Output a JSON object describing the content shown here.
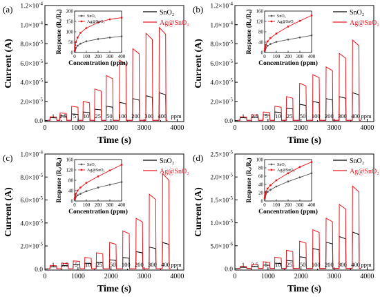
{
  "figure": {
    "ppm_unit": "ppm",
    "concentration_labels": [
      "1",
      "2.5",
      "5",
      "10",
      "25",
      "50",
      "100",
      "200",
      "300",
      "400"
    ],
    "legend": {
      "series_a": "SnO₂",
      "series_b": "Ag@SnO₂"
    },
    "colors": {
      "SnO2": "#000000",
      "Ag@SnO2": "#e8141b",
      "inset_SnO2": "#555555"
    },
    "exponent_text": {
      "e4": "-4",
      "e5": "-5",
      "e6": "-6"
    }
  },
  "chart_data": [
    {
      "type": "line",
      "panel_label": "(a)",
      "xlabel": "Time (s)",
      "ylabel": "Current (A)",
      "xlim": [
        0,
        4200
      ],
      "ylim": [
        -1e-06,
        0.00012
      ],
      "y_exp": -5,
      "yticks": [
        {
          "v": 0,
          "m": "0.0",
          "e": ""
        },
        {
          "v": 2e-05,
          "m": "2.0×10",
          "e": "-5"
        },
        {
          "v": 4e-05,
          "m": "4.0×10",
          "e": "-5"
        },
        {
          "v": 6e-05,
          "m": "6.0×10",
          "e": "-5"
        },
        {
          "v": 8e-05,
          "m": "8.0×10",
          "e": "-5"
        },
        {
          "v": 0.0001,
          "m": "1.0×10",
          "e": "-4"
        },
        {
          "v": 0.00012,
          "m": "1.2×10",
          "e": "-4"
        }
      ],
      "xticks": [
        0,
        1000,
        2000,
        3000,
        4000
      ],
      "baseline": 2e-07,
      "pulse_starts": [
        150,
        450,
        800,
        1150,
        1500,
        1850,
        2250,
        2650,
        3050,
        3450
      ],
      "pulse_width": 200,
      "series": [
        {
          "name": "SnO₂",
          "peaks": [
            3e-06,
            5e-06,
            7e-06,
            9e-06,
            1.2e-05,
            1.5e-05,
            1.9e-05,
            2.3e-05,
            2.6e-05,
            2.9e-05
          ]
        },
        {
          "name": "Ag@SnO₂",
          "peaks": [
            4e-06,
            8e-06,
            1.5e-05,
            2e-05,
            3.3e-05,
            4.7e-05,
            6.3e-05,
            7.5e-05,
            9.1e-05,
            9.7e-05
          ]
        }
      ],
      "inset": {
        "xlabel": "Concentration (ppm)",
        "ylabel": "Response (Rₐ/R₉)",
        "xlim": [
          0,
          400
        ],
        "ylim": [
          0,
          200
        ],
        "xticks": [
          0,
          100,
          200,
          300,
          400
        ],
        "yticks": [
          0,
          50,
          100,
          150,
          200
        ],
        "x": [
          1,
          2.5,
          5,
          10,
          25,
          50,
          100,
          200,
          300,
          400
        ],
        "series": [
          {
            "name": "SnO₂",
            "values": [
              5,
              10,
              15,
              22,
              33,
              43,
              54,
              65,
              72,
              78
            ]
          },
          {
            "name": "Ag@SnO₂",
            "values": [
              10,
              22,
              35,
              50,
              72,
              95,
              118,
              145,
              160,
              168
            ]
          }
        ]
      }
    },
    {
      "type": "line",
      "panel_label": "(b)",
      "xlabel": "Time (s)",
      "ylabel": "Current (A)",
      "xlim": [
        0,
        4200
      ],
      "ylim": [
        -1e-06,
        0.00012
      ],
      "yticks": [
        {
          "v": 0,
          "m": "0.0",
          "e": ""
        },
        {
          "v": 2e-05,
          "m": "2.0×10",
          "e": "-5"
        },
        {
          "v": 4e-05,
          "m": "4.0×10",
          "e": "-5"
        },
        {
          "v": 6e-05,
          "m": "6.0×10",
          "e": "-5"
        },
        {
          "v": 8e-05,
          "m": "8.0×10",
          "e": "-5"
        },
        {
          "v": 0.0001,
          "m": "1.0×10",
          "e": "-4"
        },
        {
          "v": 0.00012,
          "m": "1.2×10",
          "e": "-4"
        }
      ],
      "xticks": [
        0,
        1000,
        2000,
        3000,
        4000
      ],
      "baseline": 2e-07,
      "pulse_starts": [
        150,
        500,
        850,
        1200,
        1550,
        1950,
        2350,
        2750,
        3150,
        3550
      ],
      "pulse_width": 200,
      "series": [
        {
          "name": "SnO₂",
          "peaks": [
            3e-06,
            4e-06,
            6e-06,
            9e-06,
            1.3e-05,
            1.7e-05,
            2e-05,
            2.3e-05,
            2.5e-05,
            2.9e-05
          ]
        },
        {
          "name": "Ag@SnO₂",
          "peaks": [
            4e-06,
            6e-06,
            9e-06,
            1.5e-05,
            2.5e-05,
            3.9e-05,
            4.8e-05,
            5.6e-05,
            7e-05,
            8.4e-05
          ]
        }
      ],
      "inset": {
        "xlabel": "Concentration (ppm)",
        "ylabel": "Response (Rₐ/R₉)",
        "xlim": [
          0,
          400
        ],
        "ylim": [
          0,
          160
        ],
        "xticks": [
          0,
          100,
          200,
          300,
          400
        ],
        "yticks": [
          0,
          40,
          80,
          120,
          160
        ],
        "x": [
          1,
          2.5,
          5,
          10,
          25,
          50,
          100,
          200,
          300,
          400
        ],
        "series": [
          {
            "name": "SnO₂",
            "values": [
              5,
              9,
              13,
              18,
              26,
              33,
              41,
              50,
              58,
              66
            ]
          },
          {
            "name": "Ag@SnO₂",
            "values": [
              8,
              15,
              22,
              30,
              43,
              56,
              73,
              100,
              122,
              143
            ]
          }
        ]
      }
    },
    {
      "type": "line",
      "panel_label": "(c)",
      "xlabel": "Time (s)",
      "ylabel": "Current (A)",
      "xlim": [
        0,
        4200
      ],
      "ylim": [
        -1e-06,
        0.0001
      ],
      "yticks": [
        {
          "v": 0,
          "m": "0.0",
          "e": ""
        },
        {
          "v": 2e-05,
          "m": "2.0×10",
          "e": "-5"
        },
        {
          "v": 4e-05,
          "m": "4.0×10",
          "e": "-5"
        },
        {
          "v": 6e-05,
          "m": "6.0×10",
          "e": "-5"
        },
        {
          "v": 8e-05,
          "m": "8.0×10",
          "e": "-5"
        },
        {
          "v": 0.0001,
          "m": "1.0×10",
          "e": "-4"
        }
      ],
      "xticks": [
        0,
        1000,
        2000,
        3000,
        4000
      ],
      "baseline": 2e-07,
      "pulse_starts": [
        150,
        500,
        850,
        1200,
        1550,
        1950,
        2350,
        2750,
        3150,
        3550
      ],
      "pulse_width": 200,
      "series": [
        {
          "name": "SnO₂",
          "peaks": [
            2e-06,
            3e-06,
            4e-06,
            5e-06,
            6e-06,
            8e-06,
            1e-05,
            1.5e-05,
            1.9e-05,
            2.3e-05
          ]
        },
        {
          "name": "Ag@SnO₂",
          "peaks": [
            3e-06,
            5e-06,
            7e-06,
            1e-05,
            1.4e-05,
            2.3e-05,
            3.3e-05,
            4.4e-05,
            6.5e-05,
            8.3e-05
          ]
        }
      ],
      "inset": {
        "xlabel": "Concentration (ppm)",
        "ylabel": "Response (Rₐ/R₉)",
        "xlim": [
          0,
          400
        ],
        "ylim": [
          0,
          160
        ],
        "xticks": [
          0,
          100,
          200,
          300,
          400
        ],
        "yticks": [
          0,
          40,
          80,
          120,
          160
        ],
        "x": [
          1,
          2.5,
          5,
          10,
          25,
          50,
          100,
          200,
          300,
          400
        ],
        "series": [
          {
            "name": "SnO₂",
            "values": [
              5,
              8,
              12,
              16,
              22,
              28,
              38,
              52,
              63,
              73
            ]
          },
          {
            "name": "Ag@SnO₂",
            "values": [
              8,
              14,
              20,
              28,
              40,
              52,
              70,
              95,
              118,
              140
            ]
          }
        ]
      }
    },
    {
      "type": "line",
      "panel_label": "(d)",
      "xlabel": "Time (s)",
      "ylabel": "Current (A)",
      "xlim": [
        0,
        4200
      ],
      "ylim": [
        -3e-07,
        2.5e-05
      ],
      "yticks": [
        {
          "v": 0,
          "m": "0.0",
          "e": ""
        },
        {
          "v": 5e-06,
          "m": "5.0×10",
          "e": "-6"
        },
        {
          "v": 1e-05,
          "m": "1.0×10",
          "e": "-5"
        },
        {
          "v": 1.5e-05,
          "m": "1.5×10",
          "e": "-5"
        },
        {
          "v": 2e-05,
          "m": "2.0×10",
          "e": "-5"
        },
        {
          "v": 2.5e-05,
          "m": "2.5×10",
          "e": "-5"
        }
      ],
      "xticks": [
        0,
        1000,
        2000,
        3000,
        4000
      ],
      "baseline": 5e-08,
      "pulse_starts": [
        150,
        500,
        850,
        1200,
        1550,
        1950,
        2350,
        2750,
        3150,
        3550
      ],
      "pulse_width": 200,
      "series": [
        {
          "name": "SnO₂",
          "peaks": [
            3e-07,
            5e-07,
            8e-07,
            1.2e-06,
            1.8e-06,
            2.6e-06,
            4.4e-06,
            5.8e-06,
            7e-06,
            8e-06
          ]
        },
        {
          "name": "Ag@SnO₂",
          "peaks": [
            5e-07,
            9e-07,
            1.5e-06,
            2.5e-06,
            4e-06,
            6e-06,
            8.5e-06,
            1.1e-05,
            1.4e-05,
            1.8e-05
          ]
        }
      ],
      "inset": {
        "xlabel": "Concentration (ppm)",
        "ylabel": "Response (Rₐ/R₉)",
        "xlim": [
          0,
          400
        ],
        "ylim": [
          0,
          100
        ],
        "xticks": [
          0,
          100,
          200,
          300,
          400
        ],
        "yticks": [
          0,
          20,
          40,
          60,
          80,
          100
        ],
        "x": [
          1,
          2.5,
          5,
          10,
          25,
          50,
          100,
          200,
          300,
          400
        ],
        "series": [
          {
            "name": "SnO₂",
            "values": [
              5,
              9,
              13,
              17,
              22,
              27,
              35,
              47,
              57,
              67
            ]
          },
          {
            "name": "Ag@SnO₂",
            "values": [
              7,
              12,
              17,
              22,
              30,
              38,
              50,
              67,
              82,
              94
            ]
          }
        ]
      }
    }
  ]
}
